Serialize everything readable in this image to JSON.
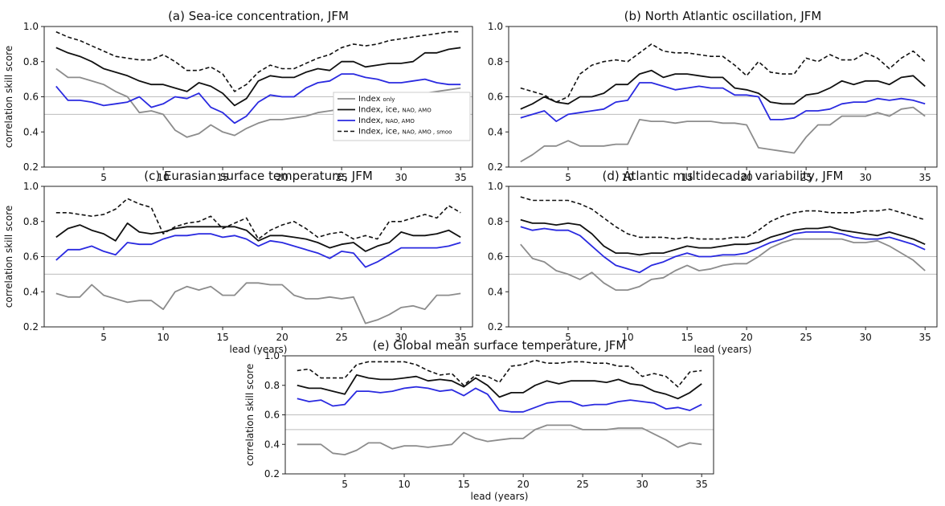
{
  "colors": {
    "gray": "#8c8c8c",
    "black": "#111111",
    "blue": "#2a2ae0",
    "dashed": "#111111",
    "ref": "#bdbdbd"
  },
  "chart_data": [
    {
      "id": "a",
      "type": "line",
      "title": "(a) Sea-ice concentration, JFM",
      "xlabel": "",
      "ylabel": "correlation skill score",
      "xlim": [
        0,
        36
      ],
      "ylim": [
        0.2,
        1.0
      ],
      "xticks": [
        "5",
        "10",
        "15",
        "20",
        "25",
        "30",
        "35"
      ],
      "yticks": [
        "0.2",
        "0.4",
        "0.6",
        "0.8",
        "1.0"
      ],
      "ref_lines": [
        0.6,
        0.5
      ],
      "legend": {
        "placement": "right",
        "entries": [
          {
            "main": "Index",
            "small": "only"
          },
          {
            "main": "Index, ice,",
            "small": "NAO, AMO"
          },
          {
            "main": "Index,",
            "small": "NAO, AMO"
          },
          {
            "main": "Index, ice,",
            "small": "NAO, AMO , smoo"
          }
        ]
      },
      "x": [
        1,
        2,
        3,
        4,
        5,
        6,
        7,
        8,
        9,
        10,
        11,
        12,
        13,
        14,
        15,
        16,
        17,
        18,
        19,
        20,
        21,
        22,
        23,
        24,
        25,
        26,
        27,
        28,
        29,
        30,
        31,
        32,
        33,
        34,
        35
      ],
      "series": [
        {
          "style": "gray",
          "values": [
            0.76,
            0.71,
            0.71,
            0.69,
            0.67,
            0.63,
            0.6,
            0.51,
            0.52,
            0.5,
            0.41,
            0.37,
            0.39,
            0.44,
            0.4,
            0.38,
            0.42,
            0.45,
            0.47,
            0.47,
            0.48,
            0.49,
            0.51,
            0.52,
            0.53,
            0.55,
            0.58,
            0.58,
            0.59,
            0.61,
            0.61,
            0.62,
            0.63,
            0.64,
            0.65
          ]
        },
        {
          "style": "black",
          "values": [
            0.88,
            0.85,
            0.83,
            0.8,
            0.76,
            0.74,
            0.72,
            0.69,
            0.67,
            0.67,
            0.65,
            0.63,
            0.68,
            0.66,
            0.62,
            0.55,
            0.59,
            0.69,
            0.72,
            0.71,
            0.71,
            0.74,
            0.76,
            0.75,
            0.8,
            0.8,
            0.77,
            0.78,
            0.79,
            0.79,
            0.8,
            0.85,
            0.85,
            0.87,
            0.88
          ]
        },
        {
          "style": "blue",
          "values": [
            0.66,
            0.58,
            0.58,
            0.57,
            0.55,
            0.56,
            0.57,
            0.6,
            0.54,
            0.56,
            0.6,
            0.59,
            0.62,
            0.54,
            0.51,
            0.45,
            0.49,
            0.57,
            0.61,
            0.6,
            0.6,
            0.65,
            0.68,
            0.69,
            0.73,
            0.73,
            0.71,
            0.7,
            0.68,
            0.68,
            0.69,
            0.7,
            0.68,
            0.67,
            0.67
          ]
        },
        {
          "style": "dashed",
          "values": [
            0.97,
            0.94,
            0.92,
            0.89,
            0.86,
            0.83,
            0.82,
            0.81,
            0.81,
            0.84,
            0.8,
            0.75,
            0.75,
            0.77,
            0.73,
            0.63,
            0.67,
            0.74,
            0.78,
            0.76,
            0.76,
            0.79,
            0.82,
            0.84,
            0.88,
            0.9,
            0.89,
            0.9,
            0.92,
            0.93,
            0.94,
            0.95,
            0.96,
            0.97,
            0.97
          ]
        }
      ]
    },
    {
      "id": "b",
      "type": "line",
      "title": "(b) North Atlantic oscillation, JFM",
      "xlabel": "",
      "ylabel": "",
      "xlim": [
        0,
        36
      ],
      "ylim": [
        0.2,
        1.0
      ],
      "xticks": [
        "5",
        "10",
        "15",
        "20",
        "25",
        "30",
        "35"
      ],
      "yticks": [
        "0.2",
        "0.4",
        "0.6",
        "0.8",
        "1.0"
      ],
      "ref_lines": [
        0.6,
        0.5
      ],
      "x": [
        1,
        2,
        3,
        4,
        5,
        6,
        7,
        8,
        9,
        10,
        11,
        12,
        13,
        14,
        15,
        16,
        17,
        18,
        19,
        20,
        21,
        22,
        23,
        24,
        25,
        26,
        27,
        28,
        29,
        30,
        31,
        32,
        33,
        34,
        35
      ],
      "series": [
        {
          "style": "gray",
          "values": [
            0.23,
            0.27,
            0.32,
            0.32,
            0.35,
            0.32,
            0.32,
            0.32,
            0.33,
            0.33,
            0.47,
            0.46,
            0.46,
            0.45,
            0.46,
            0.46,
            0.46,
            0.45,
            0.45,
            0.44,
            0.31,
            0.3,
            0.29,
            0.28,
            0.37,
            0.44,
            0.44,
            0.49,
            0.49,
            0.49,
            0.51,
            0.49,
            0.53,
            0.54,
            0.49
          ]
        },
        {
          "style": "black",
          "values": [
            0.53,
            0.56,
            0.6,
            0.57,
            0.56,
            0.6,
            0.6,
            0.62,
            0.67,
            0.67,
            0.73,
            0.75,
            0.71,
            0.73,
            0.73,
            0.72,
            0.71,
            0.71,
            0.65,
            0.64,
            0.62,
            0.57,
            0.56,
            0.56,
            0.61,
            0.62,
            0.65,
            0.69,
            0.67,
            0.69,
            0.69,
            0.67,
            0.71,
            0.72,
            0.66
          ]
        },
        {
          "style": "blue",
          "values": [
            0.48,
            0.5,
            0.52,
            0.46,
            0.5,
            0.51,
            0.52,
            0.53,
            0.57,
            0.58,
            0.68,
            0.68,
            0.66,
            0.64,
            0.65,
            0.66,
            0.65,
            0.65,
            0.61,
            0.61,
            0.6,
            0.47,
            0.47,
            0.48,
            0.52,
            0.52,
            0.53,
            0.56,
            0.57,
            0.57,
            0.59,
            0.58,
            0.59,
            0.58,
            0.56
          ]
        },
        {
          "style": "dashed",
          "values": [
            0.65,
            0.63,
            0.61,
            0.57,
            0.6,
            0.73,
            0.78,
            0.8,
            0.81,
            0.8,
            0.85,
            0.9,
            0.86,
            0.85,
            0.85,
            0.84,
            0.83,
            0.83,
            0.78,
            0.72,
            0.8,
            0.74,
            0.73,
            0.73,
            0.82,
            0.8,
            0.84,
            0.81,
            0.81,
            0.85,
            0.82,
            0.76,
            0.82,
            0.86,
            0.8
          ]
        }
      ]
    },
    {
      "id": "c",
      "type": "line",
      "title": "(c) Eurasian surface temperature, JFM",
      "xlabel": "lead (years)",
      "ylabel": "correlation skill score",
      "xlim": [
        0,
        36
      ],
      "ylim": [
        0.2,
        1.0
      ],
      "xticks": [
        "5",
        "10",
        "15",
        "20",
        "25",
        "30",
        "35"
      ],
      "yticks": [
        "0.2",
        "0.4",
        "0.6",
        "0.8",
        "1.0"
      ],
      "ref_lines": [
        0.6,
        0.5
      ],
      "x": [
        1,
        2,
        3,
        4,
        5,
        6,
        7,
        8,
        9,
        10,
        11,
        12,
        13,
        14,
        15,
        16,
        17,
        18,
        19,
        20,
        21,
        22,
        23,
        24,
        25,
        26,
        27,
        28,
        29,
        30,
        31,
        32,
        33,
        34,
        35
      ],
      "series": [
        {
          "style": "gray",
          "values": [
            0.39,
            0.37,
            0.37,
            0.44,
            0.38,
            0.36,
            0.34,
            0.35,
            0.35,
            0.3,
            0.4,
            0.43,
            0.41,
            0.43,
            0.38,
            0.38,
            0.45,
            0.45,
            0.44,
            0.44,
            0.38,
            0.36,
            0.36,
            0.37,
            0.36,
            0.37,
            0.22,
            0.24,
            0.27,
            0.31,
            0.32,
            0.3,
            0.38,
            0.38,
            0.39
          ]
        },
        {
          "style": "black",
          "values": [
            0.71,
            0.76,
            0.78,
            0.75,
            0.73,
            0.69,
            0.79,
            0.74,
            0.73,
            0.74,
            0.76,
            0.77,
            0.77,
            0.77,
            0.77,
            0.77,
            0.75,
            0.69,
            0.72,
            0.72,
            0.71,
            0.7,
            0.68,
            0.65,
            0.67,
            0.68,
            0.63,
            0.66,
            0.68,
            0.74,
            0.72,
            0.72,
            0.73,
            0.75,
            0.71
          ]
        },
        {
          "style": "blue",
          "values": [
            0.58,
            0.64,
            0.64,
            0.66,
            0.63,
            0.61,
            0.68,
            0.67,
            0.67,
            0.7,
            0.72,
            0.72,
            0.73,
            0.73,
            0.71,
            0.72,
            0.7,
            0.66,
            0.69,
            0.68,
            0.66,
            0.64,
            0.62,
            0.59,
            0.63,
            0.62,
            0.54,
            0.57,
            0.61,
            0.65,
            0.65,
            0.65,
            0.65,
            0.66,
            0.68
          ]
        },
        {
          "style": "dashed",
          "values": [
            0.85,
            0.85,
            0.84,
            0.83,
            0.84,
            0.87,
            0.93,
            0.9,
            0.88,
            0.73,
            0.77,
            0.79,
            0.8,
            0.83,
            0.76,
            0.79,
            0.82,
            0.7,
            0.75,
            0.78,
            0.8,
            0.76,
            0.71,
            0.73,
            0.74,
            0.7,
            0.72,
            0.7,
            0.8,
            0.8,
            0.82,
            0.84,
            0.82,
            0.89,
            0.85
          ]
        }
      ]
    },
    {
      "id": "d",
      "type": "line",
      "title": "(d) Atlantic multidecadal variability, JFM",
      "xlabel": "lead (years)",
      "ylabel": "",
      "xlim": [
        0,
        36
      ],
      "ylim": [
        0.2,
        1.0
      ],
      "xticks": [
        "5",
        "10",
        "15",
        "20",
        "25",
        "30",
        "35"
      ],
      "yticks": [
        "0.2",
        "0.4",
        "0.6",
        "0.8",
        "1.0"
      ],
      "ref_lines": [
        0.6,
        0.5
      ],
      "x": [
        1,
        2,
        3,
        4,
        5,
        6,
        7,
        8,
        9,
        10,
        11,
        12,
        13,
        14,
        15,
        16,
        17,
        18,
        19,
        20,
        21,
        22,
        23,
        24,
        25,
        26,
        27,
        28,
        29,
        30,
        31,
        32,
        33,
        34,
        35
      ],
      "series": [
        {
          "style": "gray",
          "values": [
            0.67,
            0.59,
            0.57,
            0.52,
            0.5,
            0.47,
            0.51,
            0.45,
            0.41,
            0.41,
            0.43,
            0.47,
            0.48,
            0.52,
            0.55,
            0.52,
            0.53,
            0.55,
            0.56,
            0.56,
            0.6,
            0.65,
            0.68,
            0.7,
            0.7,
            0.7,
            0.7,
            0.7,
            0.68,
            0.68,
            0.69,
            0.66,
            0.62,
            0.58,
            0.52
          ]
        },
        {
          "style": "black",
          "values": [
            0.81,
            0.79,
            0.79,
            0.78,
            0.79,
            0.78,
            0.73,
            0.66,
            0.62,
            0.62,
            0.61,
            0.62,
            0.62,
            0.64,
            0.66,
            0.65,
            0.65,
            0.66,
            0.67,
            0.67,
            0.68,
            0.71,
            0.73,
            0.75,
            0.76,
            0.76,
            0.77,
            0.75,
            0.74,
            0.73,
            0.72,
            0.74,
            0.72,
            0.7,
            0.67
          ]
        },
        {
          "style": "blue",
          "values": [
            0.77,
            0.75,
            0.76,
            0.75,
            0.75,
            0.72,
            0.66,
            0.6,
            0.55,
            0.53,
            0.51,
            0.55,
            0.57,
            0.6,
            0.62,
            0.6,
            0.6,
            0.61,
            0.61,
            0.62,
            0.65,
            0.68,
            0.7,
            0.73,
            0.74,
            0.74,
            0.74,
            0.73,
            0.71,
            0.7,
            0.7,
            0.71,
            0.69,
            0.67,
            0.64
          ]
        },
        {
          "style": "dashed",
          "values": [
            0.94,
            0.92,
            0.92,
            0.92,
            0.92,
            0.9,
            0.87,
            0.82,
            0.77,
            0.73,
            0.71,
            0.71,
            0.71,
            0.7,
            0.71,
            0.7,
            0.7,
            0.7,
            0.71,
            0.71,
            0.75,
            0.8,
            0.83,
            0.85,
            0.86,
            0.86,
            0.85,
            0.85,
            0.85,
            0.86,
            0.86,
            0.87,
            0.85,
            0.83,
            0.81
          ]
        }
      ]
    },
    {
      "id": "e",
      "type": "line",
      "title": "(e) Global mean surface temperature, JFM",
      "xlabel": "lead (years)",
      "ylabel": "correlation skill score",
      "xlim": [
        0,
        36
      ],
      "ylim": [
        0.2,
        1.0
      ],
      "xticks": [
        "5",
        "10",
        "15",
        "20",
        "25",
        "30",
        "35"
      ],
      "yticks": [
        "0.2",
        "0.4",
        "0.6",
        "0.8",
        "1.0"
      ],
      "ref_lines": [
        0.6,
        0.5
      ],
      "x": [
        1,
        2,
        3,
        4,
        5,
        6,
        7,
        8,
        9,
        10,
        11,
        12,
        13,
        14,
        15,
        16,
        17,
        18,
        19,
        20,
        21,
        22,
        23,
        24,
        25,
        26,
        27,
        28,
        29,
        30,
        31,
        32,
        33,
        34,
        35
      ],
      "series": [
        {
          "style": "gray",
          "values": [
            0.4,
            0.4,
            0.4,
            0.34,
            0.33,
            0.36,
            0.41,
            0.41,
            0.37,
            0.39,
            0.39,
            0.38,
            0.39,
            0.4,
            0.48,
            0.44,
            0.42,
            0.43,
            0.44,
            0.44,
            0.5,
            0.53,
            0.53,
            0.53,
            0.5,
            0.5,
            0.5,
            0.51,
            0.51,
            0.51,
            0.47,
            0.43,
            0.38,
            0.41,
            0.4
          ]
        },
        {
          "style": "black",
          "values": [
            0.8,
            0.78,
            0.78,
            0.76,
            0.74,
            0.87,
            0.85,
            0.84,
            0.84,
            0.85,
            0.86,
            0.83,
            0.84,
            0.83,
            0.79,
            0.85,
            0.8,
            0.72,
            0.75,
            0.75,
            0.8,
            0.83,
            0.81,
            0.83,
            0.83,
            0.83,
            0.82,
            0.84,
            0.81,
            0.8,
            0.76,
            0.74,
            0.71,
            0.75,
            0.81
          ]
        },
        {
          "style": "blue",
          "values": [
            0.71,
            0.69,
            0.7,
            0.66,
            0.67,
            0.76,
            0.76,
            0.75,
            0.76,
            0.78,
            0.79,
            0.78,
            0.76,
            0.77,
            0.73,
            0.78,
            0.74,
            0.63,
            0.62,
            0.62,
            0.65,
            0.68,
            0.69,
            0.69,
            0.66,
            0.67,
            0.67,
            0.69,
            0.7,
            0.69,
            0.68,
            0.64,
            0.65,
            0.63,
            0.67
          ]
        },
        {
          "style": "dashed",
          "values": [
            0.9,
            0.91,
            0.85,
            0.85,
            0.85,
            0.94,
            0.96,
            0.96,
            0.96,
            0.96,
            0.94,
            0.9,
            0.87,
            0.88,
            0.8,
            0.87,
            0.86,
            0.82,
            0.93,
            0.94,
            0.97,
            0.95,
            0.95,
            0.96,
            0.96,
            0.95,
            0.95,
            0.93,
            0.93,
            0.86,
            0.88,
            0.86,
            0.79,
            0.89,
            0.9
          ]
        }
      ]
    }
  ]
}
